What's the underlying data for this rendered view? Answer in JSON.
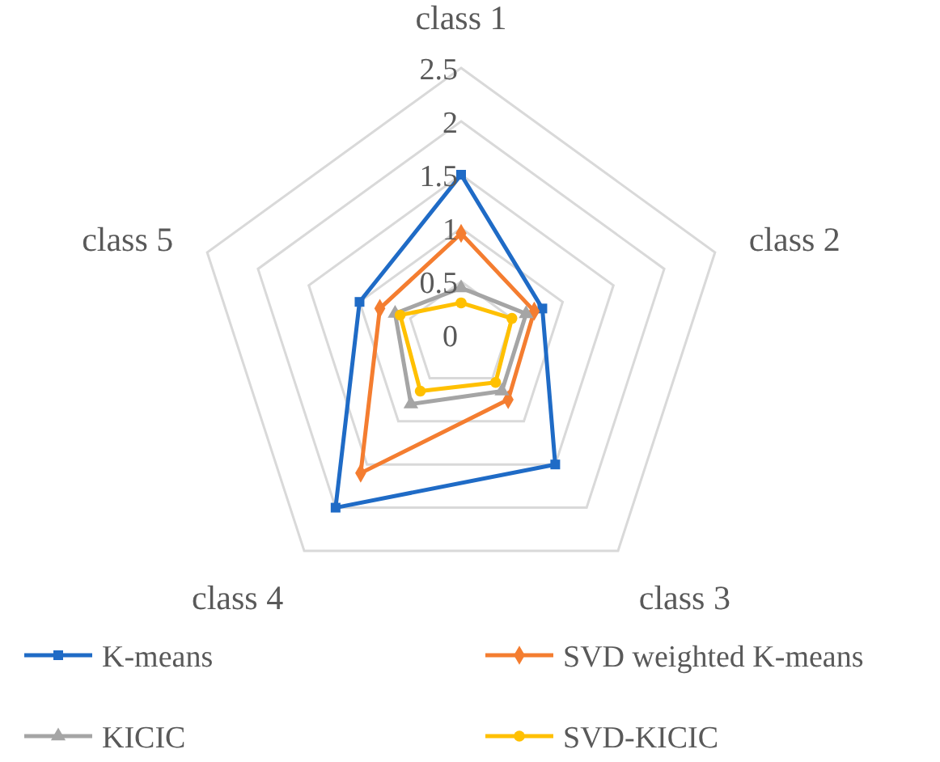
{
  "chart_data": {
    "type": "radar",
    "categories": [
      "class 1",
      "class 2",
      "class 3",
      "class 4",
      "class 5"
    ],
    "ylim": [
      0,
      2.5
    ],
    "yticks": [
      0,
      0.5,
      1,
      1.5,
      2,
      2.5
    ],
    "grid": true,
    "legend": "bottom",
    "line_style": "solid",
    "series": [
      {
        "name": "K-means",
        "color": "#1f6bc6",
        "marker": "square",
        "values": [
          1.5,
          0.8,
          1.5,
          2.0,
          1.0
        ]
      },
      {
        "name": "SVD weighted K-means",
        "color": "#f47d30",
        "marker": "diamond",
        "values": [
          0.95,
          0.72,
          0.75,
          1.6,
          0.8
        ]
      },
      {
        "name": "KICIC",
        "color": "#a5a5a5",
        "marker": "triangle",
        "values": [
          0.44,
          0.64,
          0.65,
          0.8,
          0.65
        ]
      },
      {
        "name": "SVD-KICIC",
        "color": "#ffc000",
        "marker": "circle",
        "values": [
          0.3,
          0.5,
          0.55,
          0.65,
          0.6
        ]
      }
    ]
  }
}
